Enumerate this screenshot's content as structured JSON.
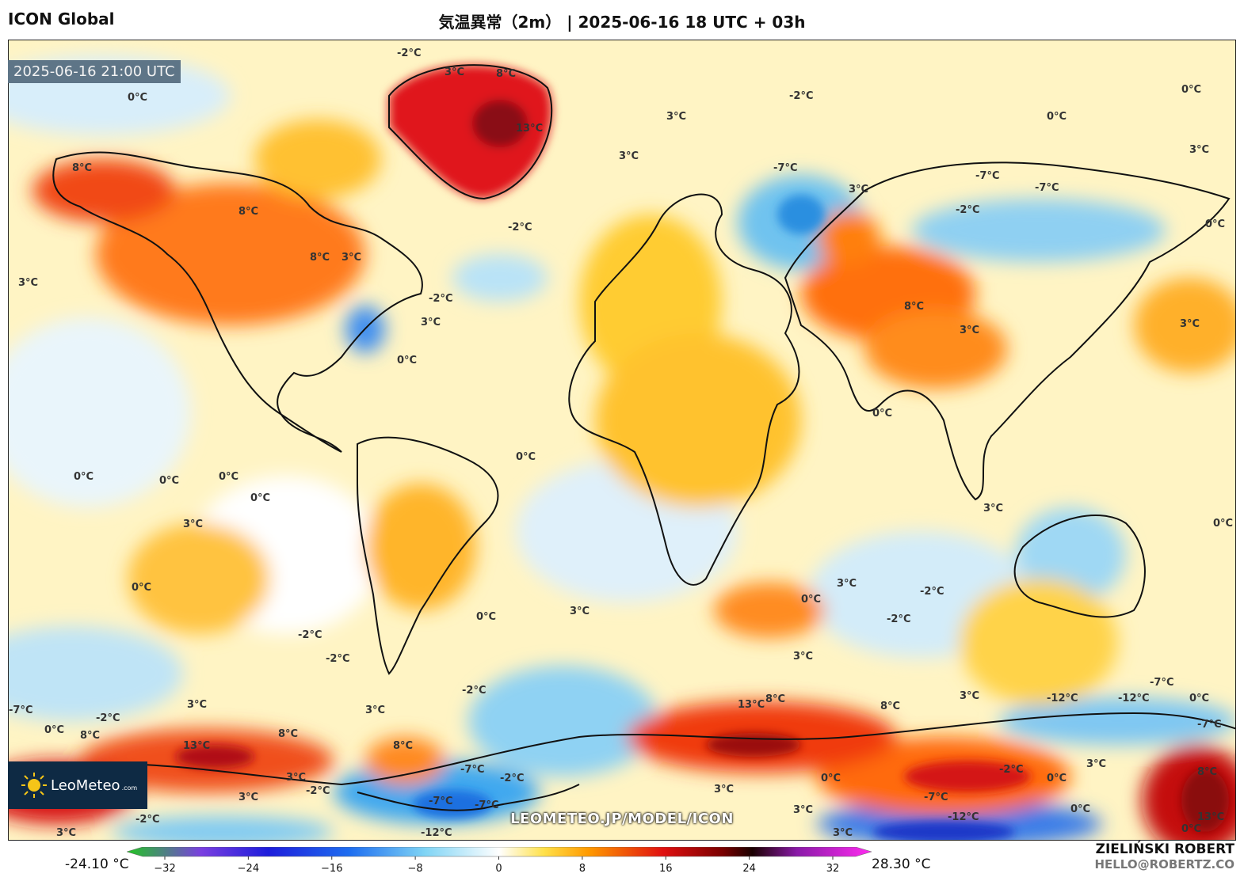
{
  "header": {
    "model": "ICON Global",
    "title": "気温異常（2m） | 2025-06-16 18 UTC + 03h"
  },
  "map": {
    "timestamp": "2025-06-16 21:00 UTC",
    "site_url": "LEOMETEO.JP/MODEL/ICON",
    "contour_labels": [
      "-2°C",
      "0°C",
      "3°C",
      "8°C",
      "13°C",
      "-7°C",
      "-12°C"
    ]
  },
  "logo": {
    "brand": "LeoMeteo",
    "brand_suffix": ".com"
  },
  "colorbar": {
    "min_value": "-24.10 °C",
    "max_value": "28.30 °C",
    "ticks": [
      "−32",
      "−24",
      "−16",
      "−8",
      "0",
      "8",
      "16",
      "24",
      "32"
    ],
    "colors": [
      "#22c522",
      "#7a3fe0",
      "#1d1ddb",
      "#1e6ef0",
      "#7fd4f5",
      "#ffffff",
      "#ffe14a",
      "#ff9a00",
      "#e01010",
      "#7a0000",
      "#1a0000",
      "#8a1aa8",
      "#ff2bf0"
    ]
  },
  "author": {
    "name": "ZIELIŃSKI ROBERT",
    "email": "HELLO@ROBERTZ.CO"
  }
}
